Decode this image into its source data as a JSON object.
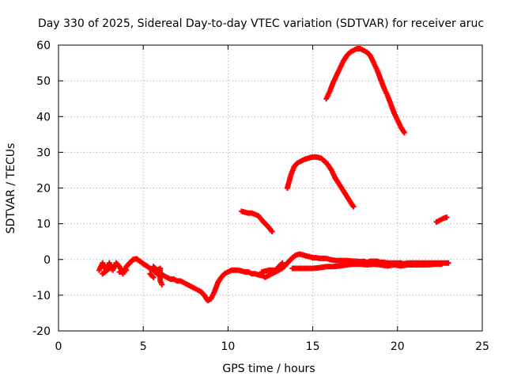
{
  "chart_data": {
    "type": "scatter",
    "title": "Day 330 of 2025, Sidereal Day-to-day VTEC variation (SDTVAR) for receiver aruc",
    "xlabel": "GPS time / hours",
    "ylabel": "SDTVAR / TECUs",
    "xlim": [
      0,
      25
    ],
    "ylim": [
      -20,
      60
    ],
    "xticks": [
      0,
      5,
      10,
      15,
      20,
      25
    ],
    "yticks": [
      -20,
      -10,
      0,
      10,
      20,
      30,
      40,
      50,
      60
    ],
    "grid": true,
    "marker": "plus",
    "color": "#ff0000",
    "series": [
      {
        "points": [
          [
            2.4,
            -3
          ],
          [
            2.6,
            -1
          ],
          [
            2.8,
            -3
          ],
          [
            3.0,
            -1
          ],
          [
            3.2,
            -3
          ],
          [
            3.4,
            -1
          ],
          [
            3.6,
            -2
          ],
          [
            3.8,
            -4
          ],
          [
            4.0,
            -2
          ],
          [
            4.2,
            -1
          ],
          [
            4.4,
            0
          ],
          [
            4.6,
            0.2
          ],
          [
            4.8,
            -0.5
          ],
          [
            5.0,
            -1.2
          ],
          [
            5.2,
            -1.8
          ],
          [
            5.4,
            -2.5
          ],
          [
            5.6,
            -3
          ],
          [
            5.8,
            -4
          ],
          [
            6.0,
            -4.2
          ],
          [
            6.2,
            -4.5
          ],
          [
            6.4,
            -5
          ],
          [
            6.6,
            -5.5
          ],
          [
            6.8,
            -5.5
          ],
          [
            7.0,
            -6
          ],
          [
            7.2,
            -6
          ],
          [
            7.4,
            -6.5
          ],
          [
            7.6,
            -7
          ],
          [
            7.8,
            -7.5
          ],
          [
            8.0,
            -8
          ],
          [
            8.2,
            -8.5
          ],
          [
            8.4,
            -9
          ],
          [
            8.6,
            -10
          ],
          [
            8.8,
            -11.5
          ],
          [
            9.0,
            -11
          ],
          [
            9.2,
            -9
          ],
          [
            9.4,
            -6.5
          ],
          [
            9.6,
            -5
          ],
          [
            9.8,
            -4
          ],
          [
            10.0,
            -3.5
          ],
          [
            10.2,
            -3
          ],
          [
            10.4,
            -3
          ],
          [
            10.6,
            -3
          ],
          [
            10.8,
            -3.2
          ],
          [
            11.0,
            -3.5
          ],
          [
            11.2,
            -3.5
          ],
          [
            11.4,
            -4
          ],
          [
            11.6,
            -4
          ],
          [
            11.8,
            -4.3
          ],
          [
            12.0,
            -4.5
          ],
          [
            12.2,
            -5
          ],
          [
            12.4,
            -4.5
          ],
          [
            12.6,
            -4
          ],
          [
            12.8,
            -3.5
          ],
          [
            13.0,
            -3
          ],
          [
            13.2,
            -2.5
          ],
          [
            13.4,
            -1.5
          ],
          [
            13.6,
            -0.5
          ],
          [
            13.8,
            0.5
          ],
          [
            14.0,
            1.2
          ],
          [
            14.2,
            1.5
          ],
          [
            14.4,
            1.3
          ],
          [
            14.6,
            1
          ],
          [
            14.8,
            0.8
          ],
          [
            15.0,
            0.5
          ],
          [
            15.2,
            0.5
          ],
          [
            15.4,
            0.3
          ],
          [
            15.6,
            0.3
          ],
          [
            15.8,
            0.3
          ],
          [
            16.0,
            0
          ],
          [
            16.2,
            -0.2
          ],
          [
            16.4,
            -0.3
          ],
          [
            16.6,
            -0.3
          ],
          [
            16.8,
            -0.3
          ],
          [
            17.0,
            -0.3
          ],
          [
            17.2,
            -0.4
          ],
          [
            17.4,
            -0.5
          ],
          [
            17.6,
            -0.5
          ],
          [
            17.8,
            -0.6
          ],
          [
            18.0,
            -0.5
          ],
          [
            18.2,
            -0.8
          ],
          [
            18.4,
            -0.5
          ],
          [
            18.6,
            -0.5
          ],
          [
            18.8,
            -0.5
          ],
          [
            19.0,
            -0.8
          ],
          [
            19.2,
            -0.8
          ],
          [
            19.4,
            -1
          ],
          [
            19.6,
            -1
          ],
          [
            19.8,
            -1
          ],
          [
            20.0,
            -1
          ],
          [
            20.2,
            -1
          ],
          [
            20.4,
            -1.2
          ],
          [
            20.6,
            -1
          ],
          [
            20.8,
            -1
          ],
          [
            21.0,
            -1
          ],
          [
            21.2,
            -1
          ],
          [
            21.4,
            -1
          ],
          [
            21.6,
            -1
          ],
          [
            21.8,
            -1
          ],
          [
            22.0,
            -1
          ],
          [
            22.2,
            -1
          ],
          [
            22.4,
            -1
          ],
          [
            22.6,
            -1
          ],
          [
            22.8,
            -1
          ],
          [
            23.0,
            -1
          ],
          [
            2.6,
            -4
          ],
          [
            3.0,
            -2.5
          ],
          [
            3.6,
            -3.5
          ],
          [
            4.0,
            -3
          ],
          [
            5.6,
            -2
          ],
          [
            5.8,
            -3
          ],
          [
            6.0,
            -2.5
          ],
          [
            6.0,
            -6
          ],
          [
            6.1,
            -7
          ],
          [
            5.4,
            -4
          ],
          [
            5.6,
            -5
          ],
          [
            12.0,
            -3.5
          ],
          [
            12.4,
            -3
          ],
          [
            12.8,
            -3
          ],
          [
            13.2,
            -1
          ],
          [
            13.8,
            -2.5
          ],
          [
            14.2,
            -2.5
          ],
          [
            14.6,
            -2.5
          ],
          [
            15.0,
            -2.5
          ],
          [
            15.4,
            -2.3
          ],
          [
            15.8,
            -2
          ],
          [
            16.2,
            -2
          ],
          [
            16.6,
            -1.8
          ],
          [
            17.0,
            -1.5
          ],
          [
            17.4,
            -1.3
          ],
          [
            17.8,
            -1.3
          ],
          [
            18.2,
            -1.5
          ],
          [
            18.6,
            -1.3
          ],
          [
            19.0,
            -1.5
          ],
          [
            19.4,
            -1.8
          ],
          [
            19.8,
            -1.5
          ],
          [
            20.2,
            -1.8
          ],
          [
            20.6,
            -1.5
          ],
          [
            21.0,
            -1.5
          ],
          [
            21.4,
            -1.5
          ],
          [
            21.8,
            -1.5
          ],
          [
            22.2,
            -1.3
          ],
          [
            22.6,
            -1.3
          ]
        ]
      },
      {
        "points": [
          [
            10.8,
            13.5
          ],
          [
            11.0,
            13.2
          ],
          [
            11.2,
            13
          ],
          [
            11.4,
            13
          ],
          [
            11.6,
            12.6
          ],
          [
            11.8,
            12.2
          ],
          [
            12.0,
            11
          ],
          [
            12.2,
            10
          ],
          [
            12.4,
            9
          ],
          [
            12.6,
            7.8
          ]
        ]
      },
      {
        "points": [
          [
            13.5,
            20
          ],
          [
            13.7,
            23.5
          ],
          [
            13.9,
            26
          ],
          [
            14.1,
            27
          ],
          [
            14.3,
            27.5
          ],
          [
            14.5,
            28
          ],
          [
            14.7,
            28.3
          ],
          [
            14.9,
            28.6
          ],
          [
            15.1,
            28.7
          ],
          [
            15.3,
            28.6
          ],
          [
            15.5,
            28.3
          ],
          [
            15.7,
            27.5
          ],
          [
            15.9,
            26.5
          ],
          [
            16.1,
            25
          ],
          [
            16.3,
            23
          ],
          [
            16.5,
            21.5
          ],
          [
            16.7,
            20
          ],
          [
            16.9,
            18.5
          ],
          [
            17.1,
            17
          ],
          [
            17.3,
            15.5
          ],
          [
            17.4,
            14.8
          ]
        ]
      },
      {
        "points": [
          [
            15.8,
            45
          ],
          [
            16.0,
            47
          ],
          [
            16.2,
            49.5
          ],
          [
            16.4,
            51.5
          ],
          [
            16.6,
            53.5
          ],
          [
            16.8,
            55.5
          ],
          [
            17.0,
            57
          ],
          [
            17.2,
            58
          ],
          [
            17.4,
            58.5
          ],
          [
            17.6,
            59
          ],
          [
            17.8,
            59
          ],
          [
            18.0,
            58.5
          ],
          [
            18.2,
            58
          ],
          [
            18.4,
            57
          ],
          [
            18.6,
            55
          ],
          [
            18.8,
            53
          ],
          [
            19.0,
            50.5
          ],
          [
            19.2,
            48
          ],
          [
            19.4,
            46
          ],
          [
            19.6,
            43.5
          ],
          [
            19.8,
            41
          ],
          [
            20.0,
            39
          ],
          [
            20.2,
            37
          ],
          [
            20.4,
            35.5
          ]
        ]
      },
      {
        "points": [
          [
            22.3,
            10.5
          ],
          [
            22.5,
            11
          ],
          [
            22.7,
            11.5
          ],
          [
            22.9,
            11.8
          ]
        ]
      }
    ]
  }
}
